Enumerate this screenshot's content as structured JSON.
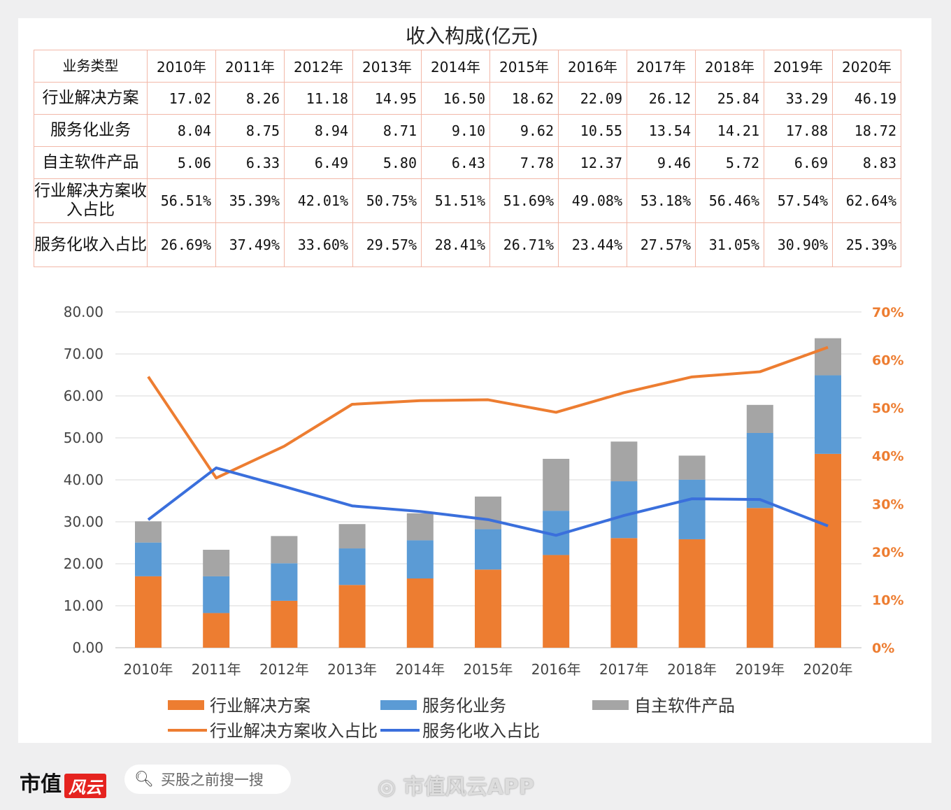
{
  "chart_data": {
    "type": "bar+line",
    "title": "收入构成(亿元)",
    "table": {
      "header": [
        "业务类型",
        "2010年",
        "2011年",
        "2012年",
        "2013年",
        "2014年",
        "2015年",
        "2016年",
        "2017年",
        "2018年",
        "2019年",
        "2020年"
      ],
      "rows": [
        {
          "label": "行业解决方案",
          "cells": [
            "17.02",
            "8.26",
            "11.18",
            "14.95",
            "16.50",
            "18.62",
            "22.09",
            "26.12",
            "25.84",
            "33.29",
            "46.19"
          ]
        },
        {
          "label": "服务化业务",
          "cells": [
            "8.04",
            "8.75",
            "8.94",
            "8.71",
            "9.10",
            "9.62",
            "10.55",
            "13.54",
            "14.21",
            "17.88",
            "18.72"
          ]
        },
        {
          "label": "自主软件产品",
          "cells": [
            "5.06",
            "6.33",
            "6.49",
            "5.80",
            "6.43",
            "7.78",
            "12.37",
            "9.46",
            "5.72",
            "6.69",
            "8.83"
          ]
        },
        {
          "label": "行业解决方案收入占比",
          "cells": [
            "56.51%",
            "35.39%",
            "42.01%",
            "50.75%",
            "51.51%",
            "51.69%",
            "49.08%",
            "53.18%",
            "56.46%",
            "57.54%",
            "62.64%"
          ]
        },
        {
          "label": "服务化收入占比",
          "cells": [
            "26.69%",
            "37.49%",
            "33.60%",
            "29.57%",
            "28.41%",
            "26.71%",
            "23.44%",
            "27.57%",
            "31.05%",
            "30.90%",
            "25.39%"
          ]
        }
      ]
    },
    "categories": [
      "2010年",
      "2011年",
      "2012年",
      "2013年",
      "2014年",
      "2015年",
      "2016年",
      "2017年",
      "2018年",
      "2019年",
      "2020年"
    ],
    "bar_series": [
      {
        "name": "行业解决方案",
        "color": "#ed7d31",
        "values": [
          17.02,
          8.26,
          11.18,
          14.95,
          16.5,
          18.62,
          22.09,
          26.12,
          25.84,
          33.29,
          46.19
        ]
      },
      {
        "name": "服务化业务",
        "color": "#5b9bd5",
        "values": [
          8.04,
          8.75,
          8.94,
          8.71,
          9.1,
          9.62,
          10.55,
          13.54,
          14.21,
          17.88,
          18.72
        ]
      },
      {
        "name": "自主软件产品",
        "color": "#a5a5a5",
        "values": [
          5.06,
          6.33,
          6.49,
          5.8,
          6.43,
          7.78,
          12.37,
          9.46,
          5.72,
          6.69,
          8.83
        ]
      }
    ],
    "line_series": [
      {
        "name": "行业解决方案收入占比",
        "color": "#ed7d31",
        "values": [
          56.51,
          35.39,
          42.01,
          50.75,
          51.51,
          51.69,
          49.08,
          53.18,
          56.46,
          57.54,
          62.64
        ]
      },
      {
        "name": "服务化收入占比",
        "color": "#3a6fdc",
        "values": [
          26.69,
          37.49,
          33.6,
          29.57,
          28.41,
          26.71,
          23.44,
          27.57,
          31.05,
          30.9,
          25.39
        ]
      }
    ],
    "y_left": {
      "range": [
        0,
        80
      ],
      "ticks": [
        "0.00",
        "10.00",
        "20.00",
        "30.00",
        "40.00",
        "50.00",
        "60.00",
        "70.00",
        "80.00"
      ]
    },
    "y_right": {
      "range": [
        0,
        70
      ],
      "ticks": [
        "0%",
        "10%",
        "20%",
        "30%",
        "40%",
        "50%",
        "60%",
        "70%"
      ],
      "color": "#ed7d31"
    },
    "grid": true,
    "legend_placement": "bottom"
  },
  "footer": {
    "logo_text": "市值",
    "logo_badge": "风云",
    "search_placeholder": "买股之前搜一搜",
    "app_name": "市值风云APP"
  }
}
